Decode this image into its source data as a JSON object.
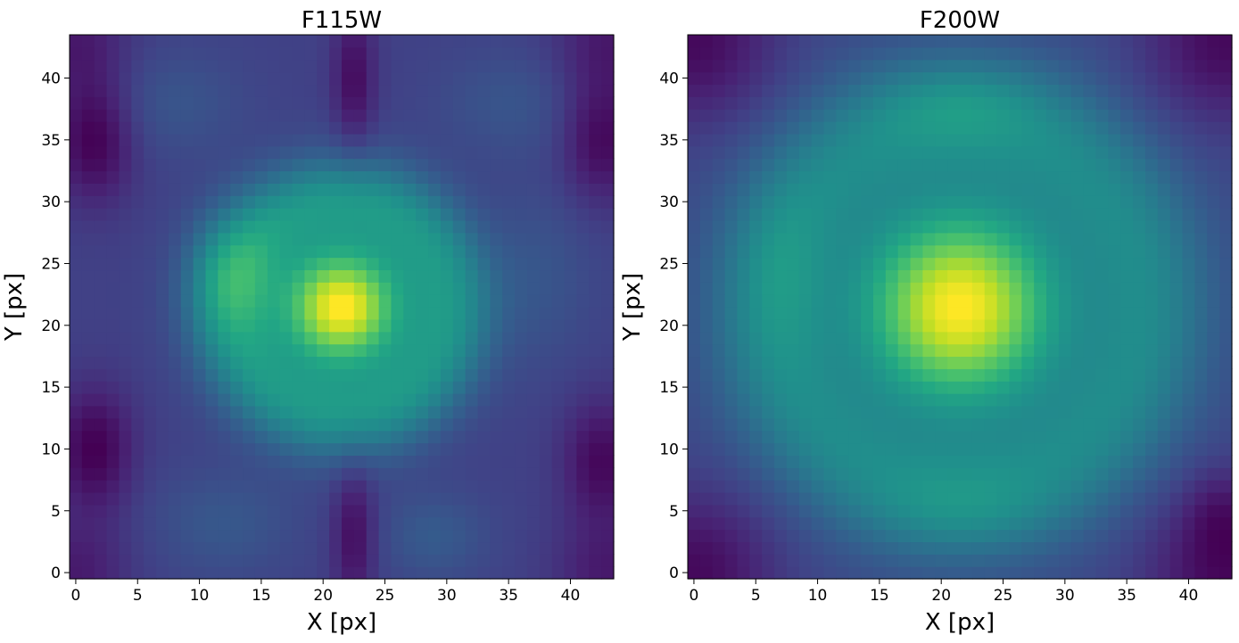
{
  "chart_data": [
    {
      "type": "heatmap",
      "title": "F115W",
      "xlabel": "X [px]",
      "ylabel": "Y [px]",
      "xlim": [
        -0.5,
        43.5
      ],
      "ylim": [
        -0.5,
        43.5
      ],
      "grid": false,
      "colormap": "viridis",
      "xticks": [
        0,
        5,
        10,
        15,
        20,
        25,
        30,
        35,
        40
      ],
      "yticks": [
        0,
        5,
        10,
        15,
        20,
        25,
        30,
        35,
        40
      ],
      "nx": 44,
      "ny": 44,
      "components": [
        {
          "kind": "base",
          "amp": 0.3
        },
        {
          "kind": "gauss",
          "x": 21.5,
          "y": 21.5,
          "sx": 3.2,
          "sy": 3.2,
          "amp": 0.7
        },
        {
          "kind": "ring",
          "x": 21.5,
          "y": 21.5,
          "r": 8.5,
          "w": 2.8,
          "amp": 0.28
        },
        {
          "kind": "gauss",
          "x": 12.5,
          "y": 24.0,
          "sx": 2.5,
          "sy": 3.5,
          "amp": 0.14
        },
        {
          "kind": "gauss",
          "x": 22.5,
          "y": 3.0,
          "sx": 1.2,
          "sy": 4.0,
          "amp": -0.14
        },
        {
          "kind": "gauss",
          "x": 22.5,
          "y": 40.0,
          "sx": 1.2,
          "sy": 4.0,
          "amp": -0.14
        },
        {
          "kind": "gauss",
          "x": 1.5,
          "y": 35.0,
          "sx": 2.2,
          "sy": 3.5,
          "amp": -0.17
        },
        {
          "kind": "gauss",
          "x": 1.5,
          "y": 10.0,
          "sx": 2.2,
          "sy": 3.5,
          "amp": -0.17
        },
        {
          "kind": "gauss",
          "x": 42.5,
          "y": 35.0,
          "sx": 2.2,
          "sy": 3.5,
          "amp": -0.15
        },
        {
          "kind": "gauss",
          "x": 42.5,
          "y": 9.0,
          "sx": 2.2,
          "sy": 3.5,
          "amp": -0.15
        },
        {
          "kind": "gauss",
          "x": 0.0,
          "y": 0.0,
          "sx": 3.0,
          "sy": 3.0,
          "amp": -0.1
        },
        {
          "kind": "gauss",
          "x": 43.0,
          "y": 0.0,
          "sx": 3.0,
          "sy": 3.0,
          "amp": -0.1
        },
        {
          "kind": "gauss",
          "x": 0.0,
          "y": 43.0,
          "sx": 3.0,
          "sy": 3.0,
          "amp": -0.1
        },
        {
          "kind": "gauss",
          "x": 43.0,
          "y": 43.0,
          "sx": 3.0,
          "sy": 3.0,
          "amp": -0.1
        },
        {
          "kind": "gauss",
          "x": 8.0,
          "y": 38.0,
          "sx": 4.0,
          "sy": 3.0,
          "amp": 0.06
        },
        {
          "kind": "gauss",
          "x": 35.0,
          "y": 38.0,
          "sx": 4.0,
          "sy": 3.0,
          "amp": 0.06
        },
        {
          "kind": "gauss",
          "x": 12.0,
          "y": 4.0,
          "sx": 4.0,
          "sy": 3.0,
          "amp": 0.07
        },
        {
          "kind": "gauss",
          "x": 29.0,
          "y": 3.0,
          "sx": 3.0,
          "sy": 2.5,
          "amp": 0.08
        },
        {
          "kind": "gauss",
          "x": 37.5,
          "y": 24.0,
          "sx": 3.0,
          "sy": 5.0,
          "amp": 0.06
        }
      ]
    },
    {
      "type": "heatmap",
      "title": "F200W",
      "xlabel": "X [px]",
      "ylabel": "Y [px]",
      "xlim": [
        -0.5,
        43.5
      ],
      "ylim": [
        -0.5,
        43.5
      ],
      "grid": false,
      "colormap": "viridis",
      "xticks": [
        0,
        5,
        10,
        15,
        20,
        25,
        30,
        35,
        40
      ],
      "yticks": [
        0,
        5,
        10,
        15,
        20,
        25,
        30,
        35,
        40
      ],
      "nx": 44,
      "ny": 44,
      "components": [
        {
          "kind": "base",
          "amp": 0.28
        },
        {
          "kind": "gauss",
          "x": 21.5,
          "y": 21.5,
          "sx": 5.5,
          "sy": 5.5,
          "amp": 0.7
        },
        {
          "kind": "ring",
          "x": 21.5,
          "y": 21.5,
          "r": 15.0,
          "w": 4.0,
          "amp": 0.22
        },
        {
          "kind": "gauss",
          "x": 7.0,
          "y": 24.0,
          "sx": 2.5,
          "sy": 5.0,
          "amp": 0.06
        },
        {
          "kind": "gauss",
          "x": 21.5,
          "y": 38.0,
          "sx": 5.0,
          "sy": 2.5,
          "amp": 0.08
        },
        {
          "kind": "gauss",
          "x": 21.5,
          "y": 5.0,
          "sx": 5.0,
          "sy": 2.5,
          "amp": 0.06
        },
        {
          "kind": "gauss",
          "x": 0.0,
          "y": 0.0,
          "sx": 4.5,
          "sy": 4.5,
          "amp": -0.17
        },
        {
          "kind": "gauss",
          "x": 43.0,
          "y": 0.0,
          "sx": 4.5,
          "sy": 4.5,
          "amp": -0.17
        },
        {
          "kind": "gauss",
          "x": 0.0,
          "y": 43.0,
          "sx": 4.5,
          "sy": 4.5,
          "amp": -0.17
        },
        {
          "kind": "gauss",
          "x": 43.0,
          "y": 43.0,
          "sx": 4.5,
          "sy": 4.5,
          "amp": -0.17
        },
        {
          "kind": "gauss",
          "x": 42.5,
          "y": 5.0,
          "sx": 2.0,
          "sy": 2.5,
          "amp": -0.08
        }
      ]
    }
  ]
}
